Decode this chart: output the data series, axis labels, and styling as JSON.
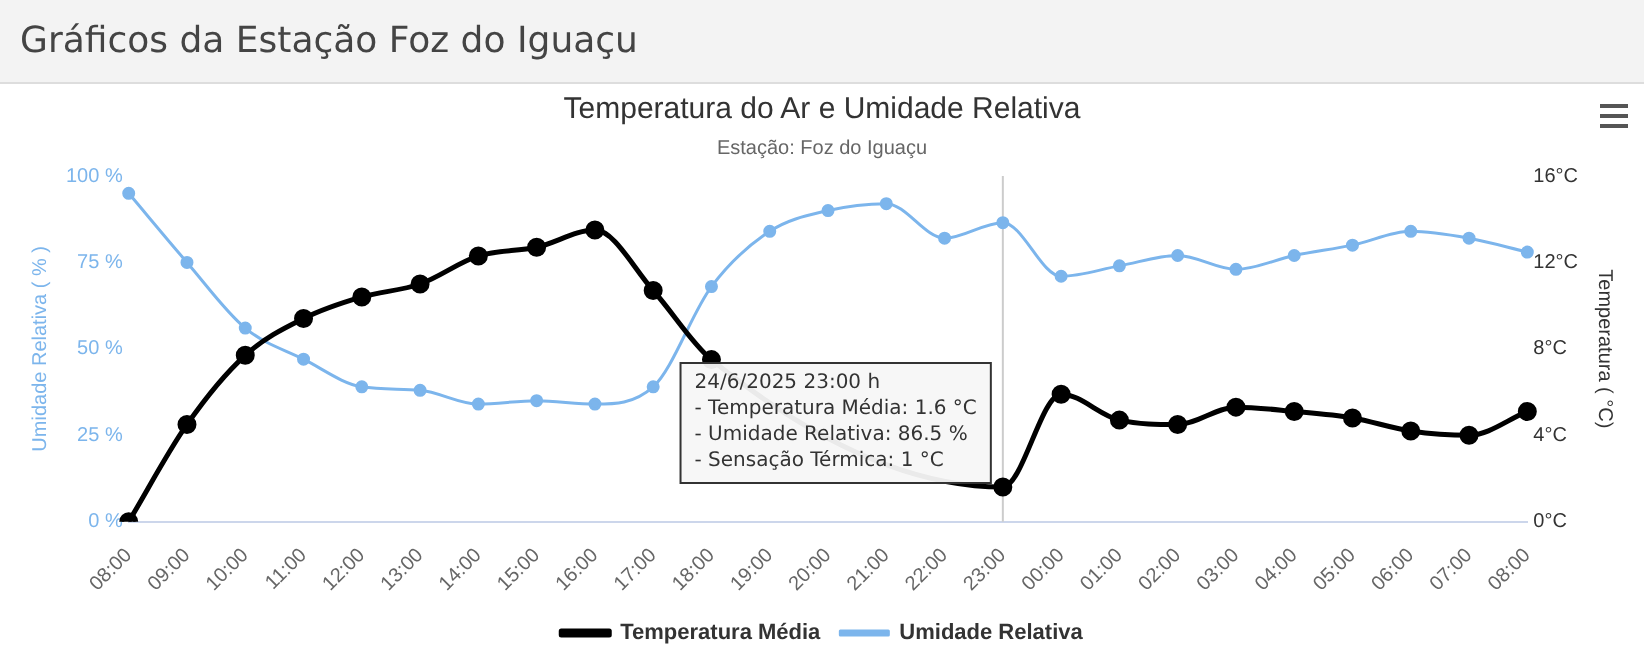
{
  "chart_data": {
    "type": "line",
    "title": "Temperatura do Ar e Umidade Relativa",
    "subtitle": "Estação: Foz do Iguaçu",
    "ylabel": "Umidade Relativa ( % )",
    "y2label": "Temperatura ( °C)",
    "categories": [
      "08:00",
      "09:00",
      "10:00",
      "11:00",
      "12:00",
      "13:00",
      "14:00",
      "15:00",
      "16:00",
      "17:00",
      "18:00",
      "19:00",
      "20:00",
      "21:00",
      "22:00",
      "23:00",
      "00:00",
      "01:00",
      "02:00",
      "03:00",
      "04:00",
      "05:00",
      "06:00",
      "07:00",
      "08:00"
    ],
    "series": [
      {
        "name": "Temperatura Média",
        "color": "#000000",
        "axis": "y2",
        "values": [
          0,
          4.5,
          7.7,
          9.4,
          10.4,
          11.0,
          12.3,
          12.7,
          13.5,
          10.7,
          7.5,
          null,
          null,
          null,
          null,
          1.6,
          5.9,
          4.7,
          4.5,
          5.3,
          5.1,
          4.8,
          4.2,
          4.0,
          5.1
        ]
      },
      {
        "name": "Umidade Relativa",
        "color": "#7cb5ec",
        "values": [
          95,
          75,
          56,
          47,
          39,
          38,
          34,
          35,
          34,
          39,
          68,
          84,
          90,
          92,
          82,
          86.5,
          71,
          74,
          77,
          73,
          77,
          80,
          84,
          82,
          78
        ]
      }
    ],
    "ylim": [
      0,
      100
    ],
    "yticks": [
      {
        "value": 0,
        "label": "0 %"
      },
      {
        "value": 25,
        "label": "25 %"
      },
      {
        "value": 50,
        "label": "50 %"
      },
      {
        "value": 75,
        "label": "75 %"
      },
      {
        "value": 100,
        "label": "100 %"
      }
    ],
    "y2lim": [
      0,
      16
    ],
    "y2ticks": [
      {
        "value": 0,
        "label": "0°C"
      },
      {
        "value": 4,
        "label": "4°C"
      },
      {
        "value": 8,
        "label": "8°C"
      },
      {
        "value": 12,
        "label": "12°C"
      },
      {
        "value": 16,
        "label": "16°C"
      }
    ],
    "ref_lines": [
      {
        "axis": "x",
        "value": "23:00",
        "color": "#cccccc"
      }
    ],
    "annotations": [
      "Gráficos da Estação Foz do Iguaçu",
      {
        "text": "24/6/2025 23:00 h\n- Temperatura Média: 1.6 °C\n- Umidade Relativa: 86.5 %\n- Sensação Térmica: 1 °C",
        "x": "23:00",
        "y": 1.6
      }
    ],
    "legend": "bottom",
    "marker": "circle",
    "line_style": "solid",
    "grid": false
  }
}
